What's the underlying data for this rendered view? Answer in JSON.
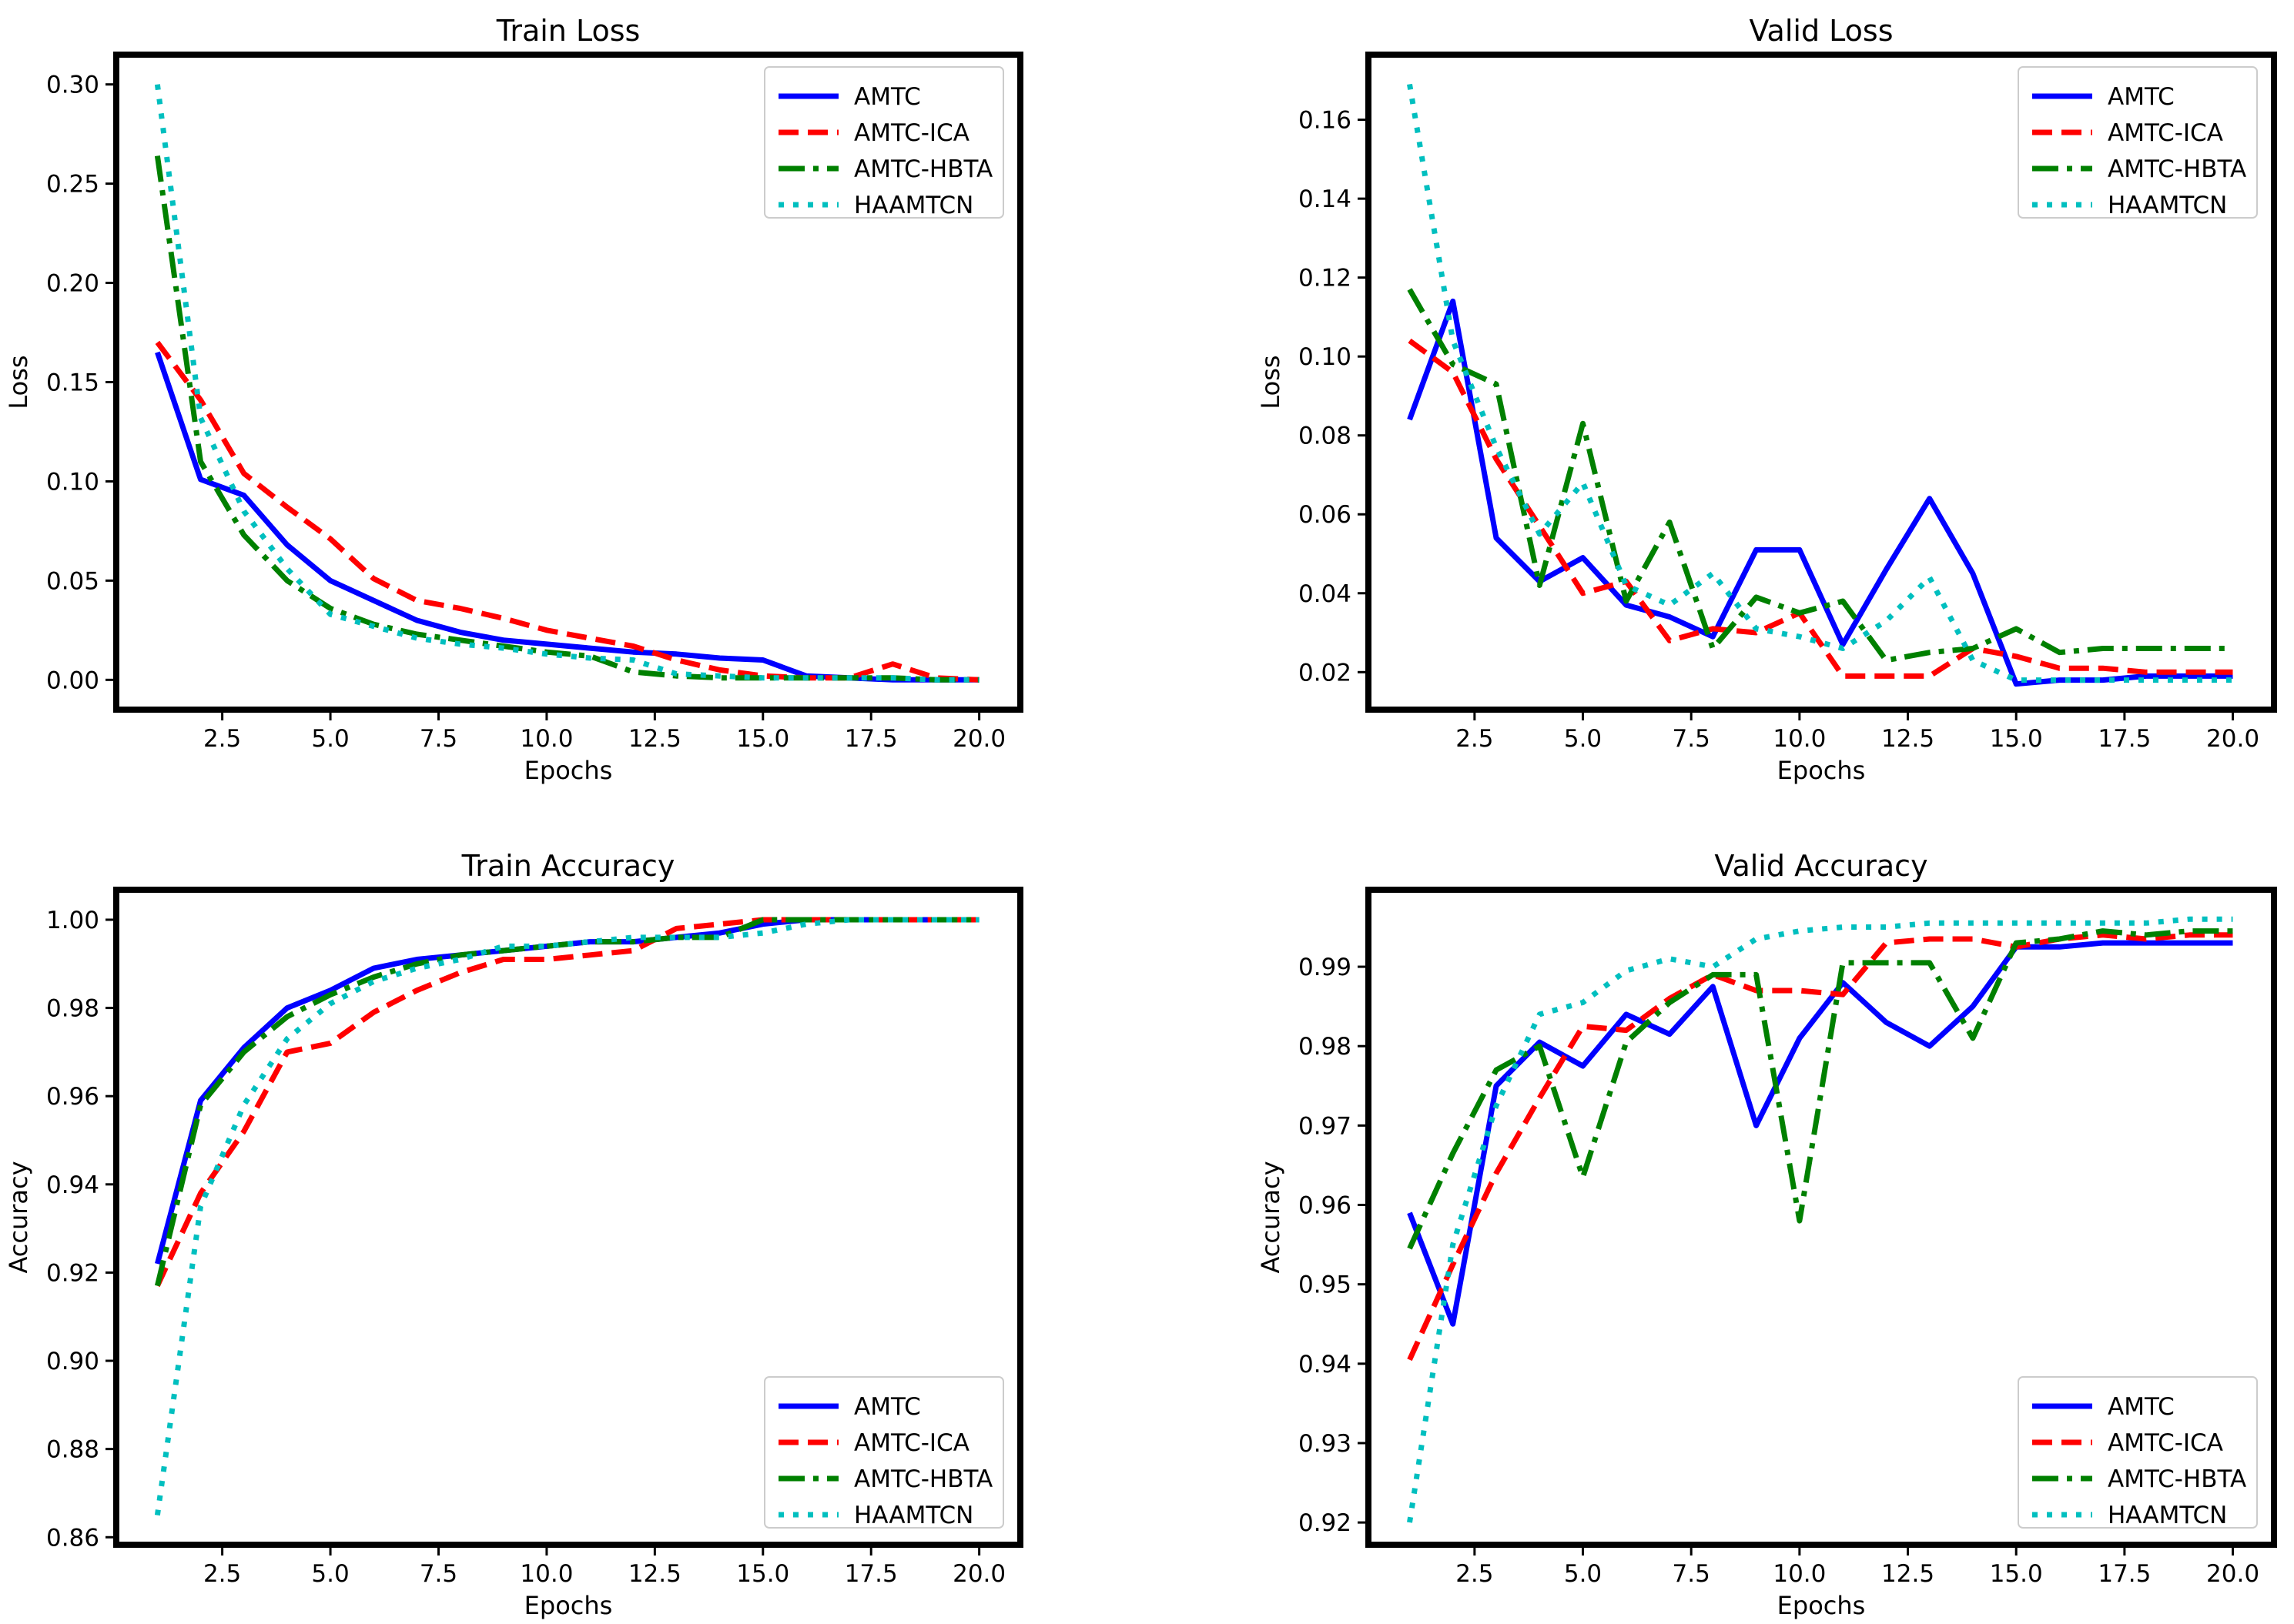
{
  "chart_data": [
    {
      "type": "line",
      "title": "Train Loss",
      "xlabel": "Epochs",
      "ylabel": "Loss",
      "xlim": [
        0.05,
        20.95
      ],
      "ylim": [
        -0.015,
        0.315
      ],
      "xticks": [
        2.5,
        5.0,
        7.5,
        10.0,
        12.5,
        15.0,
        17.5,
        20.0
      ],
      "xtick_labels": [
        "2.5",
        "5.0",
        "7.5",
        "10.0",
        "12.5",
        "15.0",
        "17.5",
        "20.0"
      ],
      "yticks": [
        0.0,
        0.05,
        0.1,
        0.15,
        0.2,
        0.25,
        0.3
      ],
      "ytick_labels": [
        "0.00",
        "0.05",
        "0.10",
        "0.15",
        "0.20",
        "0.25",
        "0.30"
      ],
      "legend_position": "top-right",
      "x": [
        1,
        2,
        3,
        4,
        5,
        6,
        7,
        8,
        9,
        10,
        11,
        12,
        13,
        14,
        15,
        16,
        17,
        18,
        19,
        20
      ],
      "series": [
        {
          "name": "AMTC",
          "values": [
            0.165,
            0.101,
            0.093,
            0.068,
            0.05,
            0.04,
            0.03,
            0.024,
            0.02,
            0.018,
            0.016,
            0.014,
            0.013,
            0.011,
            0.01,
            0.002,
            0.001,
            0.0,
            0.0,
            0.0
          ]
        },
        {
          "name": "AMTC-ICA",
          "values": [
            0.17,
            0.141,
            0.104,
            0.087,
            0.071,
            0.051,
            0.04,
            0.036,
            0.031,
            0.025,
            0.021,
            0.017,
            0.01,
            0.005,
            0.002,
            0.001,
            0.001,
            0.008,
            0.001,
            0.0
          ]
        },
        {
          "name": "AMTC-HBTA",
          "values": [
            0.264,
            0.11,
            0.073,
            0.05,
            0.036,
            0.028,
            0.023,
            0.02,
            0.017,
            0.014,
            0.012,
            0.004,
            0.002,
            0.001,
            0.001,
            0.001,
            0.001,
            0.001,
            0.0,
            0.0
          ]
        },
        {
          "name": "HAAMTCN",
          "values": [
            0.3,
            0.132,
            0.085,
            0.056,
            0.033,
            0.027,
            0.021,
            0.018,
            0.016,
            0.013,
            0.011,
            0.01,
            0.003,
            0.002,
            0.001,
            0.001,
            0.001,
            0.001,
            0.0,
            0.0
          ]
        }
      ]
    },
    {
      "type": "line",
      "title": "Valid Loss",
      "xlabel": "Epochs",
      "ylabel": "Loss",
      "xlim": [
        0.05,
        20.95
      ],
      "ylim": [
        0.0105,
        0.1765
      ],
      "xticks": [
        2.5,
        5.0,
        7.5,
        10.0,
        12.5,
        15.0,
        17.5,
        20.0
      ],
      "xtick_labels": [
        "2.5",
        "5.0",
        "7.5",
        "10.0",
        "12.5",
        "15.0",
        "17.5",
        "20.0"
      ],
      "yticks": [
        0.02,
        0.04,
        0.06,
        0.08,
        0.1,
        0.12,
        0.14,
        0.16
      ],
      "ytick_labels": [
        "0.02",
        "0.04",
        "0.06",
        "0.08",
        "0.10",
        "0.12",
        "0.14",
        "0.16"
      ],
      "legend_position": "top-right",
      "x": [
        1,
        2,
        3,
        4,
        5,
        6,
        7,
        8,
        9,
        10,
        11,
        12,
        13,
        14,
        15,
        16,
        17,
        18,
        19,
        20
      ],
      "series": [
        {
          "name": "AMTC",
          "values": [
            0.084,
            0.114,
            0.054,
            0.043,
            0.049,
            0.037,
            0.034,
            0.029,
            0.051,
            0.051,
            0.027,
            0.046,
            0.064,
            0.045,
            0.017,
            0.018,
            0.018,
            0.019,
            0.019,
            0.019
          ]
        },
        {
          "name": "AMTC-ICA",
          "values": [
            0.104,
            0.096,
            0.074,
            0.057,
            0.04,
            0.043,
            0.028,
            0.031,
            0.03,
            0.035,
            0.019,
            0.019,
            0.019,
            0.026,
            0.024,
            0.021,
            0.021,
            0.02,
            0.02,
            0.02
          ]
        },
        {
          "name": "AMTC-HBTA",
          "values": [
            0.117,
            0.098,
            0.093,
            0.042,
            0.083,
            0.038,
            0.058,
            0.026,
            0.039,
            0.035,
            0.038,
            0.023,
            0.025,
            0.026,
            0.031,
            0.025,
            0.026,
            0.026,
            0.026,
            0.026
          ]
        },
        {
          "name": "HAAMTCN",
          "values": [
            0.169,
            0.104,
            0.077,
            0.055,
            0.068,
            0.042,
            0.037,
            0.045,
            0.031,
            0.029,
            0.026,
            0.033,
            0.044,
            0.023,
            0.018,
            0.018,
            0.018,
            0.018,
            0.018,
            0.018
          ]
        }
      ]
    },
    {
      "type": "line",
      "title": "Train Accuracy",
      "xlabel": "Epochs",
      "ylabel": "Accuracy",
      "xlim": [
        0.05,
        20.95
      ],
      "ylim": [
        0.8583,
        1.0068
      ],
      "xticks": [
        2.5,
        5.0,
        7.5,
        10.0,
        12.5,
        15.0,
        17.5,
        20.0
      ],
      "xtick_labels": [
        "2.5",
        "5.0",
        "7.5",
        "10.0",
        "12.5",
        "15.0",
        "17.5",
        "20.0"
      ],
      "yticks": [
        0.86,
        0.88,
        0.9,
        0.92,
        0.94,
        0.96,
        0.98,
        1.0
      ],
      "ytick_labels": [
        "0.86",
        "0.88",
        "0.90",
        "0.92",
        "0.94",
        "0.96",
        "0.98",
        "1.00"
      ],
      "legend_position": "bottom-right",
      "x": [
        1,
        2,
        3,
        4,
        5,
        6,
        7,
        8,
        9,
        10,
        11,
        12,
        13,
        14,
        15,
        16,
        17,
        18,
        19,
        20
      ],
      "series": [
        {
          "name": "AMTC",
          "values": [
            0.922,
            0.959,
            0.971,
            0.98,
            0.984,
            0.989,
            0.991,
            0.992,
            0.993,
            0.994,
            0.995,
            0.995,
            0.996,
            0.997,
            0.999,
            1.0,
            1.0,
            1.0,
            1.0,
            1.0
          ]
        },
        {
          "name": "AMTC-ICA",
          "values": [
            0.917,
            0.938,
            0.952,
            0.97,
            0.972,
            0.979,
            0.984,
            0.988,
            0.991,
            0.991,
            0.992,
            0.993,
            0.998,
            0.999,
            1.0,
            1.0,
            1.0,
            1.0,
            1.0,
            1.0
          ]
        },
        {
          "name": "AMTC-HBTA",
          "values": [
            0.917,
            0.958,
            0.97,
            0.978,
            0.983,
            0.987,
            0.99,
            0.992,
            0.993,
            0.994,
            0.995,
            0.995,
            0.996,
            0.996,
            1.0,
            1.0,
            1.0,
            1.0,
            1.0,
            1.0
          ]
        },
        {
          "name": "HAAMTCN",
          "values": [
            0.865,
            0.935,
            0.958,
            0.973,
            0.981,
            0.986,
            0.989,
            0.991,
            0.994,
            0.994,
            0.995,
            0.996,
            0.996,
            0.996,
            0.997,
            0.999,
            1.0,
            1.0,
            1.0,
            1.0
          ]
        }
      ]
    },
    {
      "type": "line",
      "title": "Valid Accuracy",
      "xlabel": "Epochs",
      "ylabel": "Accuracy",
      "xlim": [
        0.05,
        20.95
      ],
      "ylim": [
        0.9172,
        0.9997
      ],
      "xticks": [
        2.5,
        5.0,
        7.5,
        10.0,
        12.5,
        15.0,
        17.5,
        20.0
      ],
      "xtick_labels": [
        "2.5",
        "5.0",
        "7.5",
        "10.0",
        "12.5",
        "15.0",
        "17.5",
        "20.0"
      ],
      "yticks": [
        0.92,
        0.93,
        0.94,
        0.95,
        0.96,
        0.97,
        0.98,
        0.99
      ],
      "ytick_labels": [
        "0.92",
        "0.93",
        "0.94",
        "0.95",
        "0.96",
        "0.97",
        "0.98",
        "0.99"
      ],
      "legend_position": "bottom-right",
      "x": [
        1,
        2,
        3,
        4,
        5,
        6,
        7,
        8,
        9,
        10,
        11,
        12,
        13,
        14,
        15,
        16,
        17,
        18,
        19,
        20
      ],
      "series": [
        {
          "name": "AMTC",
          "values": [
            0.959,
            0.945,
            0.975,
            0.9805,
            0.9775,
            0.984,
            0.9815,
            0.9875,
            0.97,
            0.981,
            0.988,
            0.983,
            0.98,
            0.985,
            0.9925,
            0.9925,
            0.993,
            0.993,
            0.993,
            0.993
          ]
        },
        {
          "name": "AMTC-ICA",
          "values": [
            0.9405,
            0.9525,
            0.964,
            0.9735,
            0.9825,
            0.982,
            0.986,
            0.989,
            0.987,
            0.987,
            0.9865,
            0.993,
            0.9935,
            0.9935,
            0.9925,
            0.9935,
            0.994,
            0.9935,
            0.994,
            0.994
          ]
        },
        {
          "name": "AMTC-HBTA",
          "values": [
            0.9545,
            0.9665,
            0.977,
            0.98,
            0.9635,
            0.9805,
            0.9855,
            0.989,
            0.989,
            0.958,
            0.9905,
            0.9905,
            0.9905,
            0.981,
            0.993,
            0.9935,
            0.9945,
            0.994,
            0.9945,
            0.9945
          ]
        },
        {
          "name": "HAAMTCN",
          "values": [
            0.92,
            0.955,
            0.9725,
            0.984,
            0.9855,
            0.9895,
            0.991,
            0.99,
            0.9935,
            0.9945,
            0.995,
            0.995,
            0.9955,
            0.9955,
            0.9955,
            0.9955,
            0.9955,
            0.9955,
            0.996,
            0.996
          ]
        }
      ]
    }
  ]
}
